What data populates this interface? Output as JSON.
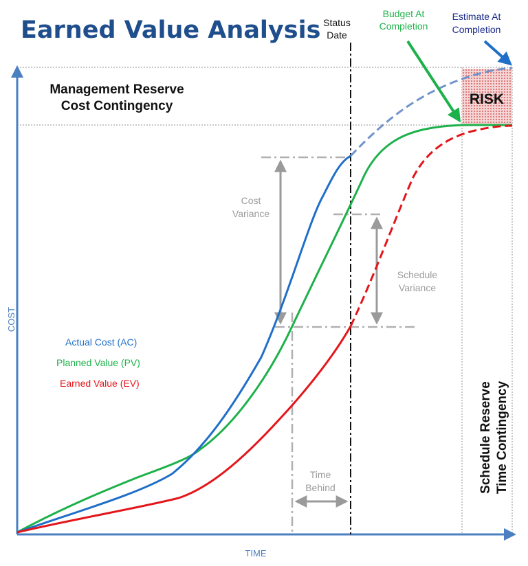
{
  "title": "Earned Value Analysis",
  "labels": {
    "status_date_line1": "Status",
    "status_date_line2": "Date",
    "bac_line1": "Budget At",
    "bac_line2": "Completion",
    "eac_line1": "Estimate At",
    "eac_line2": "Completion",
    "mgmt_reserve_line1": "Management Reserve",
    "mgmt_reserve_line2": "Cost Contingency",
    "risk": "RISK",
    "cost_variance_line1": "Cost",
    "cost_variance_line2": "Variance",
    "schedule_variance_line1": "Schedule",
    "schedule_variance_line2": "Variance",
    "time_behind_line1": "Time",
    "time_behind_line2": "Behind",
    "schedule_reserve_line1": "Schedule Reserve",
    "schedule_reserve_line2": "Time Contingency",
    "y_axis": "COST",
    "x_axis": "TIME"
  },
  "legend": [
    {
      "label": "Actual Cost (AC)",
      "color": "#1f6fc8"
    },
    {
      "label": "Planned Value (PV)",
      "color": "#1db14a"
    },
    {
      "label": "Earned Value (EV)",
      "color": "#e3161b"
    }
  ],
  "colors": {
    "title": "#1f4e8c",
    "axis": "#4a7fc1",
    "ac": "#1f6fc8",
    "pv": "#1db14a",
    "ev": "#e3161b",
    "eac_dashed": "#6f93cc",
    "guide": "#b0b0b0",
    "annotation": "#9a9a9a",
    "eac_arrow": "#1f6fc8",
    "eac_text": "#1a2a8a",
    "risk_fill": "#f4d4d4",
    "risk_dot": "#d23a3a"
  }
}
